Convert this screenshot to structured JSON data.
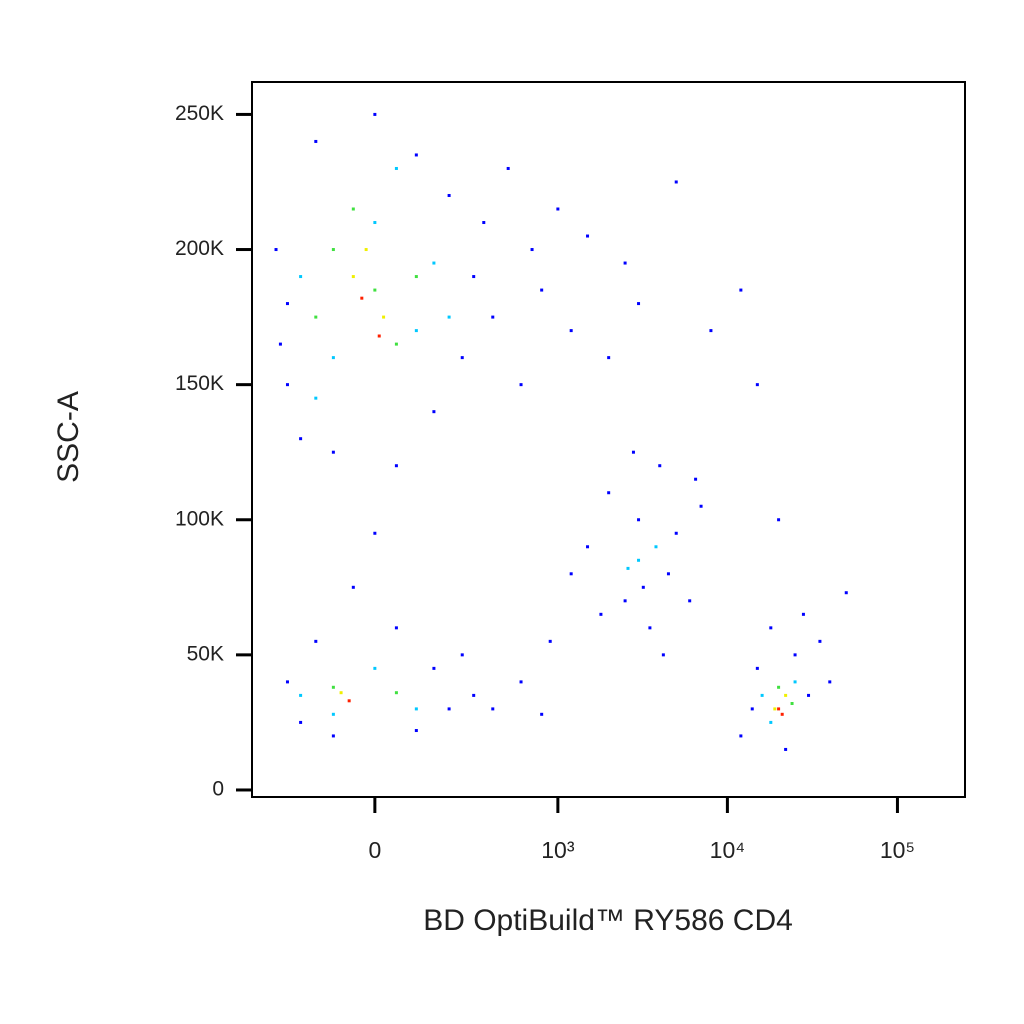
{
  "chart_data": {
    "type": "scatter",
    "x_label": "BD OptiBuild™ RY586 CD4",
    "y_label": "SSC-A",
    "xscale": "biexponential",
    "xlim": [
      -430,
      249600
    ],
    "ylim": [
      -2600,
      262000
    ],
    "xticks": [
      0,
      {
        "value": 1000,
        "label": "10³"
      },
      {
        "value": 10000,
        "label": "10⁴"
      },
      {
        "value": 100000,
        "label": "10⁵"
      }
    ],
    "yticks": [
      0,
      {
        "value": 50000,
        "label": "50K"
      },
      {
        "value": 100000,
        "label": "100K"
      },
      {
        "value": 150000,
        "label": "150K"
      },
      {
        "value": 200000,
        "label": "200K"
      },
      {
        "value": 250000,
        "label": "250K"
      }
    ],
    "series": [
      {
        "color": "#0000ff",
        "x": [
          -300,
          -250,
          -200,
          -150,
          -100,
          0,
          50,
          100,
          150,
          200,
          250,
          300,
          350,
          400,
          500,
          600,
          700,
          800,
          1000,
          1200,
          1500,
          2000,
          2500,
          3000,
          5000,
          8000,
          12000,
          15000,
          -250,
          -280,
          -250,
          -200,
          -150,
          -100,
          50,
          100,
          150,
          200,
          250,
          -50,
          0,
          300,
          400,
          600,
          800,
          1500,
          2000,
          2500,
          3000,
          3500,
          4000,
          4500,
          5000,
          6000,
          7000,
          1800,
          2800,
          4200,
          3200,
          6500,
          900,
          1200,
          12000,
          15000,
          18000,
          22000,
          25000,
          30000,
          35000,
          40000,
          28000,
          14000,
          50000,
          20000
        ],
        "values": [
          200000,
          150000,
          130000,
          240000,
          125000,
          250000,
          120000,
          235000,
          140000,
          220000,
          160000,
          190000,
          210000,
          175000,
          230000,
          150000,
          200000,
          185000,
          215000,
          170000,
          205000,
          160000,
          195000,
          180000,
          225000,
          170000,
          185000,
          150000,
          180000,
          165000,
          40000,
          25000,
          55000,
          20000,
          60000,
          22000,
          45000,
          30000,
          50000,
          75000,
          95000,
          35000,
          30000,
          40000,
          28000,
          90000,
          110000,
          70000,
          100000,
          60000,
          120000,
          80000,
          95000,
          70000,
          105000,
          65000,
          125000,
          50000,
          75000,
          115000,
          55000,
          80000,
          20000,
          45000,
          60000,
          15000,
          50000,
          35000,
          55000,
          40000,
          65000,
          30000,
          73000,
          100000
        ]
      },
      {
        "color": "#00c8ff",
        "x": [
          -200,
          -100,
          0,
          100,
          150,
          -150,
          50,
          200,
          -200,
          0,
          100,
          -100,
          3000,
          3800,
          2600,
          16000,
          25000,
          18000
        ],
        "values": [
          190000,
          160000,
          210000,
          170000,
          195000,
          145000,
          230000,
          175000,
          35000,
          45000,
          30000,
          28000,
          85000,
          90000,
          82000,
          35000,
          40000,
          25000
        ]
      },
      {
        "color": "#40e040",
        "x": [
          -100,
          0,
          50,
          -50,
          100,
          -150,
          -100,
          50,
          20000,
          24000
        ],
        "values": [
          200000,
          185000,
          165000,
          215000,
          190000,
          175000,
          38000,
          36000,
          38000,
          32000
        ]
      },
      {
        "color": "#f0f000",
        "x": [
          -50,
          20,
          -20,
          -80,
          19000,
          22000
        ],
        "values": [
          190000,
          175000,
          200000,
          36000,
          30000,
          35000
        ]
      },
      {
        "color": "#ff2000",
        "x": [
          -30,
          10,
          -60,
          20000,
          21000
        ],
        "values": [
          182000,
          168000,
          33000,
          30000,
          28000
        ]
      }
    ]
  }
}
